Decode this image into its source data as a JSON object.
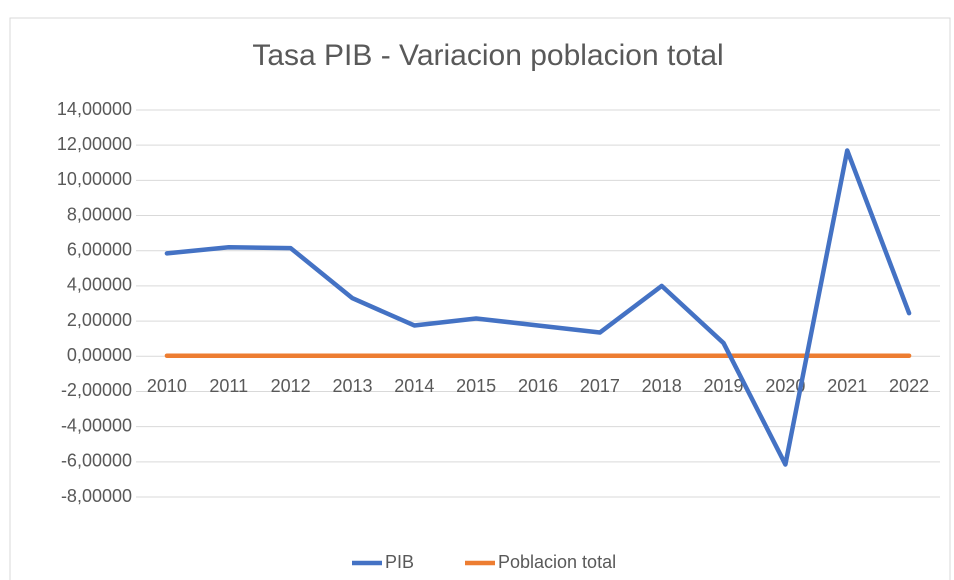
{
  "chart_data": {
    "type": "line",
    "title": "Tasa PIB - Variacion poblacion total",
    "categories": [
      "2010",
      "2011",
      "2012",
      "2013",
      "2014",
      "2015",
      "2016",
      "2017",
      "2018",
      "2019",
      "2020",
      "2021",
      "2022"
    ],
    "series": [
      {
        "name": "PIB",
        "color": "#4472c4",
        "values": [
          5.85,
          6.2,
          6.15,
          3.3,
          1.75,
          2.15,
          1.75,
          1.35,
          4.0,
          0.75,
          -6.15,
          11.7,
          2.45
        ]
      },
      {
        "name": "Poblacion total",
        "color": "#ed7d31",
        "values": [
          0.03,
          0.03,
          0.03,
          0.03,
          0.03,
          0.03,
          0.03,
          0.03,
          0.03,
          0.03,
          0.03,
          0.03,
          0.03
        ]
      }
    ],
    "ylim": [
      -8,
      14
    ],
    "yticks": [
      {
        "value": -8,
        "label": "-8,00000"
      },
      {
        "value": -6,
        "label": "-6,00000"
      },
      {
        "value": -4,
        "label": "-4,00000"
      },
      {
        "value": -2,
        "label": "-2,00000"
      },
      {
        "value": 0,
        "label": "0,00000"
      },
      {
        "value": 2,
        "label": "2,00000"
      },
      {
        "value": 4,
        "label": "4,00000"
      },
      {
        "value": 6,
        "label": "6,00000"
      },
      {
        "value": 8,
        "label": "8,00000"
      },
      {
        "value": 10,
        "label": "10,00000"
      },
      {
        "value": 12,
        "label": "12,00000"
      },
      {
        "value": 14,
        "label": "14,00000"
      }
    ],
    "grid": true,
    "legend": "bottom"
  }
}
